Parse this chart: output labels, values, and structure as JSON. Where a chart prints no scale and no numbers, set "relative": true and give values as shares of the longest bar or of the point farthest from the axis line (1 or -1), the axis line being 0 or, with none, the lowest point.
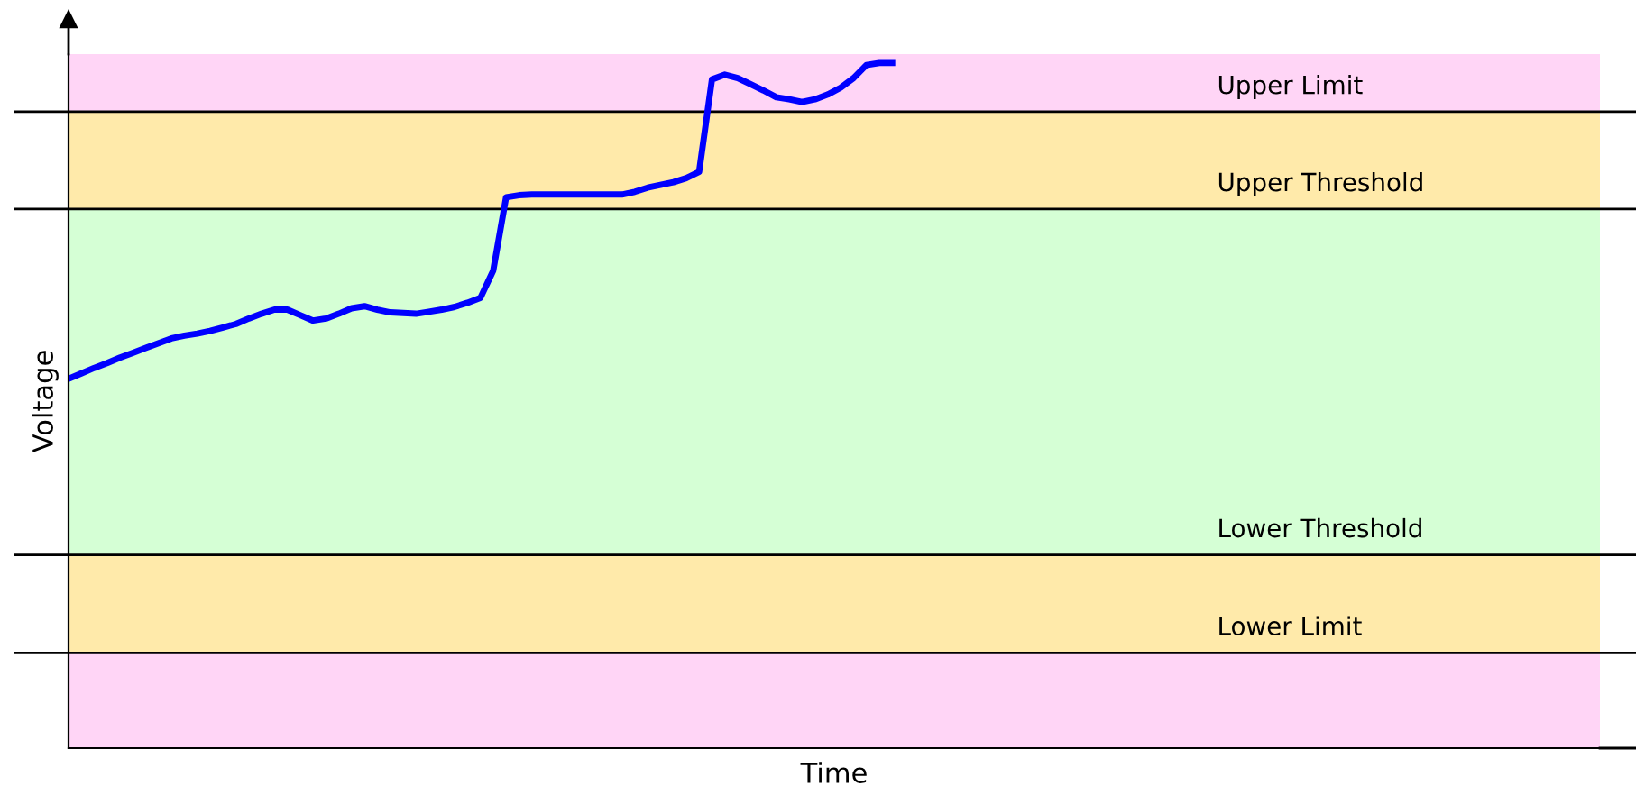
{
  "chart_data": {
    "type": "line",
    "relative": true,
    "xlabel": "Time",
    "ylabel": "Voltage",
    "categories": [
      null,
      null,
      null,
      null,
      null,
      null,
      null,
      null,
      null,
      null,
      null,
      null,
      null,
      null,
      null,
      null,
      null,
      null,
      null,
      null,
      null,
      null,
      null,
      null,
      null,
      null,
      null,
      null,
      null,
      null,
      null,
      null,
      null,
      null,
      null,
      null,
      null,
      null,
      null,
      null,
      null,
      null,
      null,
      null,
      null,
      null,
      null,
      null,
      null,
      null,
      null,
      null,
      null,
      null,
      null,
      null,
      null,
      null,
      null,
      null,
      null,
      null,
      null,
      null,
      null,
      null,
      null,
      null,
      null,
      null,
      null,
      null,
      null,
      null,
      null,
      null,
      null,
      null,
      null,
      null,
      null,
      null,
      null,
      null,
      null,
      null,
      null,
      null,
      null,
      null,
      null,
      null,
      null,
      null,
      null,
      null,
      null,
      null,
      null,
      null,
      null,
      null,
      null,
      null,
      null,
      null,
      null,
      null,
      null,
      null,
      null,
      null,
      null,
      null,
      null,
      null,
      null,
      null,
      null,
      null
    ],
    "series": [
      {
        "color": "#0000ff",
        "values": [
          0.539,
          0.547,
          0.555,
          0.562,
          0.57,
          0.577,
          0.584,
          0.591,
          0.598,
          0.602,
          0.605,
          0.609,
          0.614,
          0.619,
          0.627,
          0.634,
          0.64,
          0.64,
          0.632,
          0.624,
          0.627,
          0.634,
          0.642,
          0.645,
          0.64,
          0.636,
          0.635,
          0.634,
          0.637,
          0.64,
          0.644,
          0.65,
          0.657,
          0.697,
          0.804,
          0.807,
          0.808,
          0.808,
          0.808,
          0.808,
          0.808,
          0.808,
          0.808,
          0.808,
          0.812,
          0.818,
          0.822,
          0.826,
          0.832,
          0.841,
          0.976,
          0.983,
          0.978,
          0.969,
          0.96,
          0.95,
          0.947,
          0.943,
          0.947,
          0.954,
          0.964,
          0.978,
          0.997,
          1.0,
          1.0,
          null,
          null,
          null,
          null,
          null,
          null,
          null,
          null,
          null,
          null,
          null,
          null,
          null,
          null,
          null,
          null,
          null,
          null,
          null,
          null,
          null,
          null,
          null,
          null,
          null,
          null,
          null,
          null,
          null,
          null,
          null,
          null,
          null,
          null,
          null,
          null,
          null,
          null,
          null,
          null,
          null,
          null,
          null,
          null,
          null,
          null,
          null,
          null,
          null,
          null,
          null,
          null,
          null,
          null,
          null
        ]
      }
    ],
    "bands": [
      {
        "axis": "y",
        "from": 0,
        "to": 0.139,
        "color": "#ffd5f6"
      },
      {
        "axis": "y",
        "from": 0.139,
        "to": 0.282,
        "color": "#ffeaaa"
      },
      {
        "axis": "y",
        "from": 0.282,
        "to": 0.787,
        "color": "#d5ffd5"
      },
      {
        "axis": "y",
        "from": 0.787,
        "to": 0.929,
        "color": "#ffeaaa"
      },
      {
        "axis": "y",
        "from": 0.929,
        "to": 1.013,
        "color": "#ffd5f6"
      }
    ],
    "ref_lines": [
      {
        "axis": "y",
        "value": 0.139,
        "label": "Lower Limit",
        "color": "#000000"
      },
      {
        "axis": "y",
        "value": 0.282,
        "label": "Lower Threshold",
        "color": "#000000"
      },
      {
        "axis": "y",
        "value": 0.787,
        "label": "Upper Threshold",
        "color": "#000000"
      },
      {
        "axis": "y",
        "value": 0.929,
        "label": "Upper Limit",
        "color": "#000000"
      }
    ]
  }
}
